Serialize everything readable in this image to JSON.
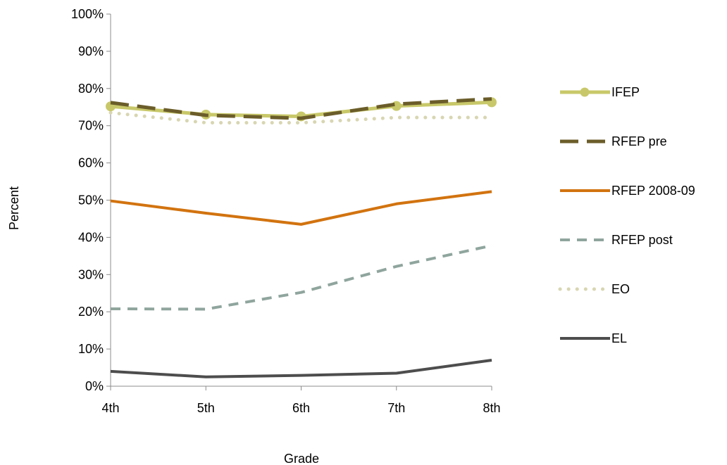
{
  "chart_data": {
    "type": "line",
    "title": "",
    "xlabel": "Grade",
    "ylabel": "Percent",
    "categories": [
      "4th",
      "5th",
      "6th",
      "7th",
      "8th"
    ],
    "ylim": [
      0,
      100
    ],
    "ytick_values": [
      0,
      10,
      20,
      30,
      40,
      50,
      60,
      70,
      80,
      90,
      100
    ],
    "ytick_labels": [
      "0%",
      "10%",
      "20%",
      "30%",
      "40%",
      "50%",
      "60%",
      "70%",
      "80%",
      "90%",
      "100%"
    ],
    "grid": false,
    "legend_position": "right",
    "series": [
      {
        "name": "IFEP",
        "values": [
          75.2,
          73.0,
          72.5,
          75.3,
          76.3
        ],
        "color": "#c8c86a",
        "style": "solid-marker"
      },
      {
        "name": "RFEP pre",
        "values": [
          76.2,
          72.8,
          72.0,
          75.8,
          77.2
        ],
        "color": "#6b5d2a",
        "style": "long-dash"
      },
      {
        "name": "RFEP 2008-09",
        "values": [
          49.8,
          46.5,
          43.5,
          49.0,
          52.3
        ],
        "color": "#d2730f",
        "style": "solid"
      },
      {
        "name": "RFEP post",
        "values": [
          20.8,
          20.7,
          25.2,
          32.2,
          37.8
        ],
        "color": "#8fa59d",
        "style": "dash"
      },
      {
        "name": "EO",
        "values": [
          73.5,
          70.8,
          70.8,
          72.2,
          72.2
        ],
        "color": "#d8d6b2",
        "style": "dot"
      },
      {
        "name": "EL",
        "values": [
          4.0,
          2.5,
          2.9,
          3.5,
          7.0
        ],
        "color": "#4d4d4d",
        "style": "solid"
      }
    ]
  }
}
